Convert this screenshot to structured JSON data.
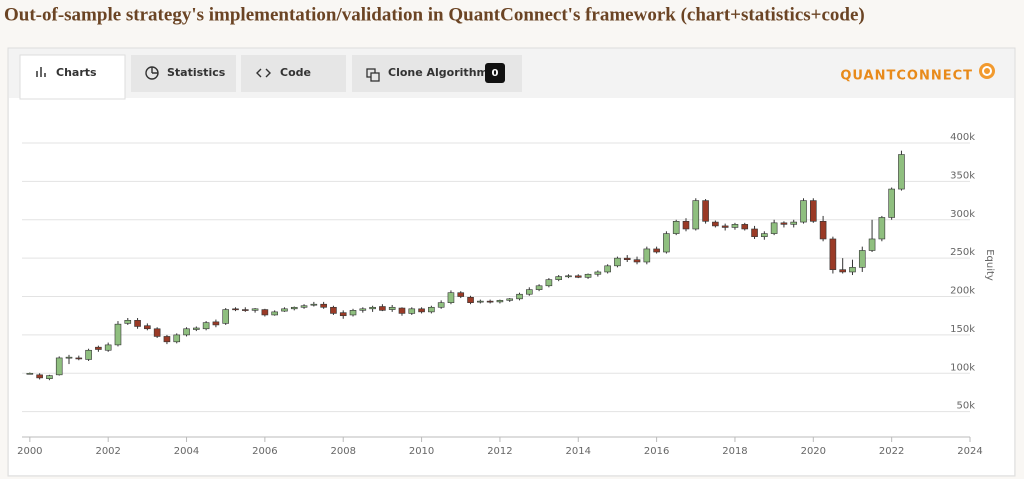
{
  "header": {
    "title": "Out-of-sample strategy's implementation/validation in QuantConnect's framework (chart+statistics+code)"
  },
  "tabs": [
    {
      "label": "Charts"
    },
    {
      "label": "Statistics"
    },
    {
      "label": "Code"
    },
    {
      "label": "Clone Algorithm",
      "badge": 0
    }
  ],
  "logo": "QUANTCONNECT",
  "chart_data": {
    "type": "candlestick",
    "y_label": "Equity",
    "up_color": "#8fbf7f",
    "down_color": "#9a3a26",
    "grid": true,
    "xlim": [
      1999.8,
      2024
    ],
    "xticks": [
      2000,
      2002,
      2004,
      2006,
      2008,
      2010,
      2012,
      2014,
      2016,
      2018,
      2020,
      2022,
      2024
    ],
    "ylim": [
      17000,
      443000
    ],
    "yticks": [
      {
        "value": 50000,
        "label": "50k"
      },
      {
        "value": 100000,
        "label": "100k"
      },
      {
        "value": 150000,
        "label": "150k"
      },
      {
        "value": 200000,
        "label": "200k"
      },
      {
        "value": 250000,
        "label": "250k"
      },
      {
        "value": 300000,
        "label": "300k"
      },
      {
        "value": 350000,
        "label": "350k"
      },
      {
        "value": 400000,
        "label": "400k"
      }
    ],
    "x": [
      2000,
      2000.25,
      2000.5,
      2000.75,
      2001,
      2001.25,
      2001.5,
      2001.75,
      2002,
      2002.25,
      2002.5,
      2002.75,
      2003,
      2003.25,
      2003.5,
      2003.75,
      2004,
      2004.25,
      2004.5,
      2004.75,
      2005,
      2005.25,
      2005.5,
      2005.75,
      2006,
      2006.25,
      2006.5,
      2006.75,
      2007,
      2007.25,
      2007.5,
      2007.75,
      2008,
      2008.25,
      2008.5,
      2008.75,
      2009,
      2009.25,
      2009.5,
      2009.75,
      2010,
      2010.25,
      2010.5,
      2010.75,
      2011,
      2011.25,
      2011.5,
      2011.75,
      2012,
      2012.25,
      2012.5,
      2012.75,
      2013,
      2013.25,
      2013.5,
      2013.75,
      2014,
      2014.25,
      2014.5,
      2014.75,
      2015,
      2015.25,
      2015.5,
      2015.75,
      2016,
      2016.25,
      2016.5,
      2016.75,
      2017,
      2017.25,
      2017.5,
      2017.75,
      2018,
      2018.25,
      2018.5,
      2018.75,
      2019,
      2019.25,
      2019.5,
      2019.75,
      2020,
      2020.25,
      2020.5,
      2020.75,
      2021,
      2021.25,
      2021.5,
      2021.75,
      2022,
      2022.25
    ],
    "open": [
      100000,
      98000,
      93000,
      98000,
      120000,
      120000,
      118000,
      134000,
      130000,
      137000,
      165000,
      169000,
      162000,
      158000,
      148000,
      141000,
      150000,
      157000,
      158000,
      167000,
      165000,
      184000,
      183000,
      182000,
      183000,
      176000,
      181000,
      184000,
      186000,
      189000,
      190000,
      186000,
      179000,
      176000,
      182000,
      184000,
      187000,
      183000,
      185000,
      178000,
      184000,
      180000,
      186000,
      192000,
      205000,
      199000,
      193000,
      194000,
      193000,
      195000,
      197000,
      203000,
      209000,
      214000,
      222000,
      226000,
      227000,
      225000,
      229000,
      232000,
      240000,
      250000,
      248000,
      245000,
      262000,
      258000,
      282000,
      298000,
      288000,
      325000,
      297000,
      292000,
      290000,
      294000,
      288000,
      278000,
      282000,
      296000,
      294000,
      297000,
      325000,
      298000,
      275000,
      235000,
      232000,
      238000,
      260000,
      275000,
      303000,
      340000
    ],
    "high": [
      101000,
      100000,
      98000,
      122000,
      124000,
      123000,
      132000,
      136000,
      140000,
      168000,
      172000,
      172000,
      165000,
      160000,
      150000,
      152000,
      160000,
      161000,
      168000,
      170000,
      185000,
      186000,
      186000,
      185000,
      184000,
      182000,
      186000,
      187000,
      190000,
      193000,
      193000,
      188000,
      182000,
      184000,
      186000,
      188000,
      190000,
      189000,
      186000,
      186000,
      186000,
      188000,
      195000,
      208000,
      207000,
      201000,
      196000,
      196000,
      196000,
      198000,
      205000,
      212000,
      216000,
      224000,
      228000,
      229000,
      229000,
      230000,
      234000,
      242000,
      252000,
      254000,
      252000,
      265000,
      265000,
      285000,
      300000,
      302000,
      328000,
      327000,
      299000,
      295000,
      296000,
      296000,
      292000,
      285000,
      300000,
      298000,
      300000,
      328000,
      328000,
      305000,
      278000,
      250000,
      248000,
      265000,
      300000,
      305000,
      342000,
      390000
    ],
    "low": [
      99000,
      92000,
      91000,
      97000,
      112000,
      117000,
      116000,
      128000,
      128000,
      135000,
      163000,
      158000,
      156000,
      146000,
      138000,
      139000,
      148000,
      155000,
      156000,
      160000,
      163000,
      181000,
      180000,
      179000,
      174000,
      175000,
      180000,
      182000,
      184000,
      187000,
      184000,
      176000,
      171000,
      174000,
      179000,
      180000,
      181000,
      180000,
      175000,
      176000,
      178000,
      178000,
      184000,
      190000,
      198000,
      190000,
      191000,
      191000,
      191000,
      193000,
      195000,
      201000,
      207000,
      212000,
      220000,
      224000,
      224000,
      223000,
      226000,
      230000,
      238000,
      245000,
      242000,
      242000,
      256000,
      256000,
      280000,
      285000,
      286000,
      295000,
      290000,
      286000,
      287000,
      286000,
      275000,
      274000,
      280000,
      290000,
      290000,
      295000,
      296000,
      272000,
      230000,
      230000,
      228000,
      232000,
      258000,
      272000,
      300000,
      338000
    ],
    "close": [
      100000,
      94000,
      97000,
      120000,
      121000,
      119000,
      130000,
      131000,
      137000,
      164000,
      169000,
      161000,
      158000,
      148000,
      141000,
      150000,
      158000,
      159000,
      166000,
      163000,
      183000,
      183000,
      182000,
      184000,
      176000,
      180000,
      184000,
      186000,
      188000,
      190000,
      186000,
      178000,
      175000,
      182000,
      184000,
      186000,
      182000,
      186000,
      178000,
      184000,
      180000,
      186000,
      192000,
      205000,
      200000,
      192000,
      194000,
      193000,
      195000,
      197000,
      203000,
      209000,
      214000,
      222000,
      226000,
      227000,
      225000,
      229000,
      232000,
      240000,
      250000,
      248000,
      245000,
      262000,
      258000,
      282000,
      298000,
      288000,
      325000,
      298000,
      292000,
      290000,
      294000,
      288000,
      278000,
      282000,
      296000,
      294000,
      297000,
      325000,
      298000,
      275000,
      235000,
      232000,
      238000,
      260000,
      275000,
      303000,
      340000,
      385000
    ]
  }
}
